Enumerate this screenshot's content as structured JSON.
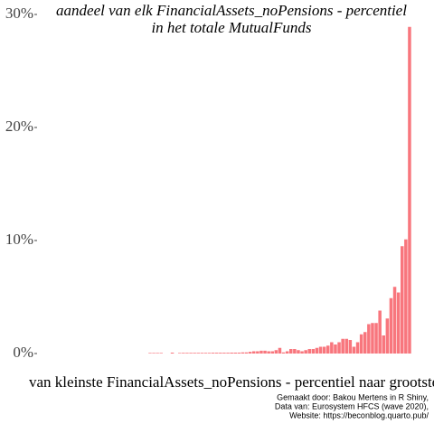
{
  "chart_data": {
    "type": "bar",
    "title": [
      "aandeel van elk FinancialAssets_noPensions - percentiel",
      "in het totale MutualFunds"
    ],
    "x_label": "van kleinste FinancialAssets_noPensions - percentiel naar grootste",
    "caption": [
      "Gemaakt door: Bakou Mertens in R Shiny,",
      "Data van: Eurosystem HFCS (wave 2020),",
      "Website: https://beconblog.quarto.pub/"
    ],
    "color": "#f8767d",
    "values": [
      0,
      0,
      0,
      0,
      0,
      0,
      0,
      0,
      0,
      0,
      0,
      0,
      0,
      0,
      0,
      0,
      0,
      0,
      0,
      0,
      0,
      0,
      0,
      0,
      0,
      0,
      0,
      0,
      0,
      0.05,
      0.05,
      0.05,
      0.05,
      0,
      0,
      0.08,
      0,
      0.05,
      0.06,
      0.06,
      0.06,
      0.06,
      0.06,
      0.06,
      0.06,
      0.06,
      0.07,
      0.07,
      0.07,
      0.07,
      0.07,
      0.08,
      0.08,
      0.08,
      0.1,
      0.1,
      0.15,
      0.2,
      0.2,
      0.25,
      0.25,
      0.2,
      0.2,
      0.3,
      0.5,
      0.1,
      0.2,
      0.4,
      0.4,
      0.3,
      0.2,
      0.3,
      0.4,
      0.4,
      0.5,
      0.6,
      0.6,
      0.7,
      1.0,
      0.8,
      1.0,
      1.3,
      1.3,
      1.2,
      0.6,
      1.0,
      1.7,
      1.9,
      2.6,
      2.7,
      2.7,
      3.8,
      1.6,
      3.1,
      4.9,
      5.9,
      5.4,
      9.5,
      10.1,
      28.9
    ],
    "ylim": [
      -0.4,
      30.6
    ],
    "yticks": [
      {
        "value": 0,
        "label": "0%"
      },
      {
        "value": 10,
        "label": "10%"
      },
      {
        "value": 20,
        "label": "20%"
      },
      {
        "value": 30,
        "label": "30%"
      }
    ]
  }
}
